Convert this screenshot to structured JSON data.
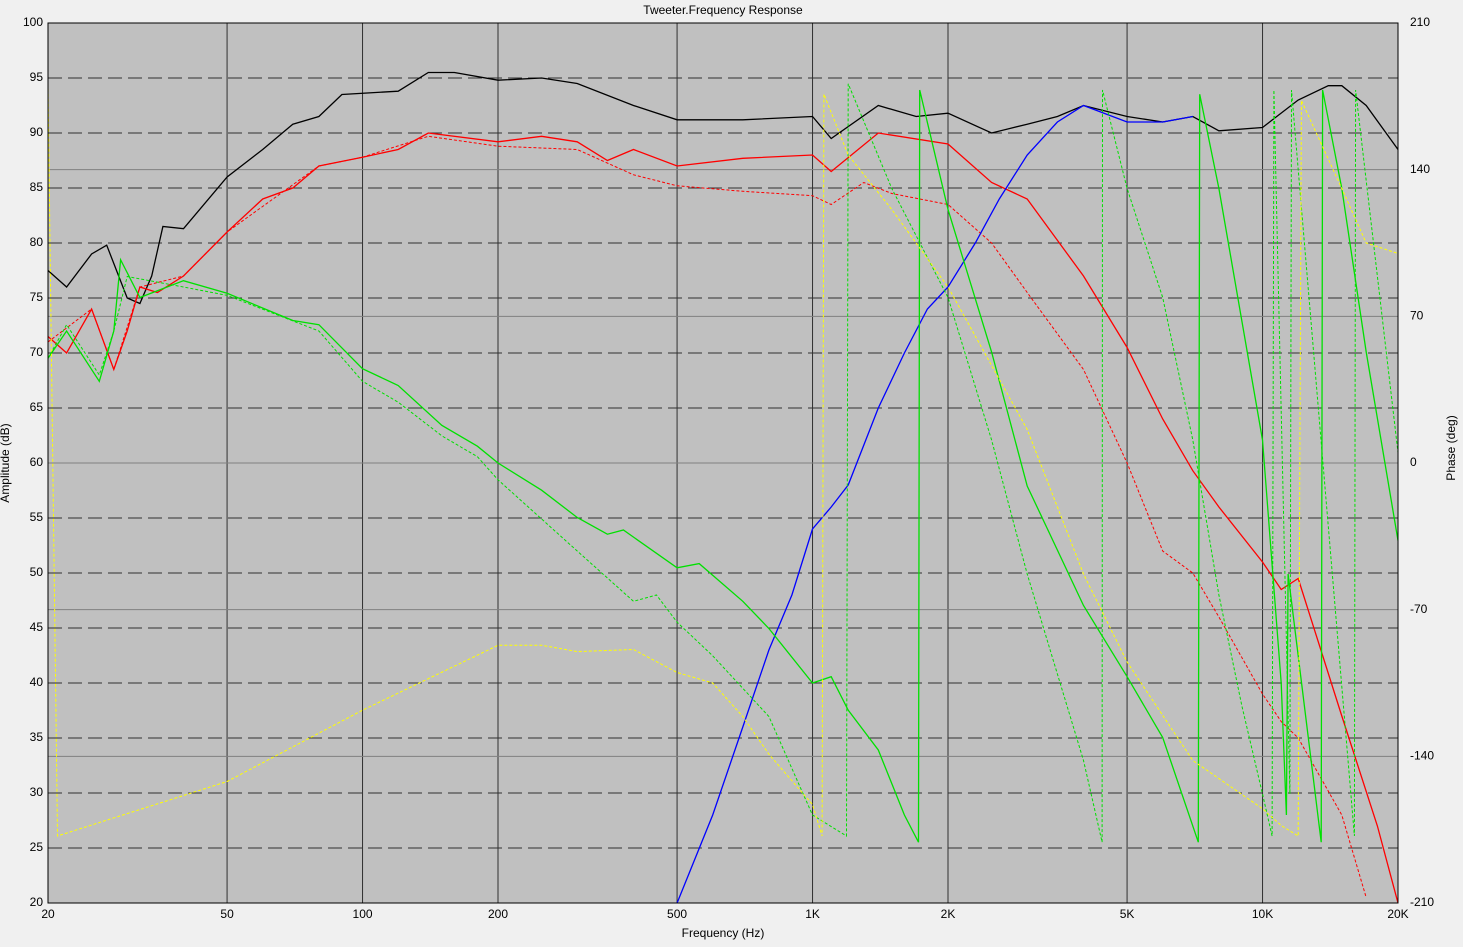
{
  "chart_data": {
    "type": "line",
    "title": "Tweeter.Frequency Response",
    "xlabel": "Frequency (Hz)",
    "ylabel": "Amplitude (dB)",
    "y2label": "Phase (deg)",
    "xscale": "log",
    "xlim": [
      20,
      20000
    ],
    "xticks": [
      20,
      50,
      100,
      200,
      500,
      {
        "value": 1000,
        "label": "1K"
      },
      {
        "value": 2000,
        "label": "2K"
      },
      {
        "value": 5000,
        "label": "5K"
      },
      {
        "value": 10000,
        "label": "10K"
      },
      {
        "value": 20000,
        "label": "20K"
      }
    ],
    "ylim": [
      20,
      100
    ],
    "yticks": [
      20,
      25,
      30,
      35,
      40,
      45,
      50,
      55,
      60,
      65,
      70,
      75,
      80,
      85,
      90,
      95,
      100
    ],
    "y2lim": [
      -210,
      210
    ],
    "y2ticks": [
      -210,
      -140,
      -70,
      0,
      70,
      140,
      210
    ],
    "grid": true,
    "series": [
      {
        "color": "#000000",
        "style": "solid",
        "x": [
          20,
          22,
          25,
          27,
          30,
          32,
          34,
          36,
          40,
          50,
          60,
          70,
          80,
          90,
          120,
          140,
          160,
          200,
          250,
          300,
          400,
          500,
          700,
          1000,
          1100,
          1400,
          1700,
          2000,
          2500,
          3000,
          3500,
          4000,
          5000,
          6000,
          7000,
          8000,
          10000,
          12000,
          14000,
          15000,
          17000,
          20000
        ],
        "values": [
          77.5,
          76,
          79,
          79.8,
          75,
          74.5,
          77,
          81.5,
          81.3,
          86,
          88.5,
          90.8,
          91.5,
          93.5,
          93.8,
          95.5,
          95.5,
          94.8,
          95,
          94.5,
          92.5,
          91.2,
          91.2,
          91.5,
          89.5,
          92.5,
          91.5,
          91.8,
          90,
          90.8,
          91.5,
          92.5,
          91.5,
          91,
          91.5,
          90.2,
          90.5,
          93,
          94.3,
          94.3,
          92.5,
          88.5
        ]
      },
      {
        "color": "#ff0000",
        "style": "solid",
        "x": [
          20,
          22,
          25,
          28,
          30,
          32,
          35,
          40,
          50,
          60,
          70,
          80,
          100,
          120,
          140,
          200,
          250,
          300,
          350,
          400,
          500,
          700,
          1000,
          1100,
          1400,
          2000,
          2500,
          3000,
          4000,
          5000,
          6000,
          7000,
          8000,
          10000,
          11000,
          12000,
          15000,
          18000,
          20000
        ],
        "values": [
          71.5,
          70,
          74,
          68.5,
          72,
          76,
          75.5,
          77,
          81,
          84,
          85,
          87,
          87.8,
          88.5,
          90,
          89.2,
          89.7,
          89.2,
          87.5,
          88.5,
          87,
          87.7,
          88,
          86.5,
          90,
          89,
          85.5,
          84,
          77,
          70.5,
          64,
          59.3,
          56,
          51,
          48.5,
          49.5,
          37,
          27,
          20
        ]
      },
      {
        "color": "#ff0000",
        "style": "dashed",
        "x": [
          20,
          25,
          28,
          32,
          40,
          50,
          80,
          100,
          140,
          200,
          300,
          400,
          500,
          700,
          1000,
          1100,
          1300,
          1500,
          2000,
          2500,
          3000,
          4000,
          5000,
          6000,
          7000,
          8000,
          10000,
          11000,
          12000,
          15000,
          17000
        ],
        "values": [
          71,
          74,
          68.5,
          76,
          77,
          81,
          87,
          87.8,
          89.7,
          88.8,
          88.5,
          86.2,
          85.2,
          84.7,
          84.3,
          83.5,
          85.5,
          84.5,
          83.5,
          80,
          75.5,
          68.5,
          60,
          52,
          50,
          46,
          39,
          36.5,
          35,
          28,
          20.5
        ]
      },
      {
        "color": "#0000ff",
        "style": "solid",
        "x": [
          500,
          600,
          700,
          800,
          900,
          1000,
          1100,
          1200,
          1400,
          1600,
          1800,
          2000,
          2300,
          2600,
          3000,
          3500,
          4000,
          5000,
          6000,
          7000
        ],
        "values": [
          20,
          28,
          36,
          43,
          48,
          54,
          56,
          58,
          65,
          70,
          74,
          76,
          80,
          84,
          88,
          91,
          92.5,
          91,
          91,
          91.5
        ]
      },
      {
        "color": "#00e000",
        "style": "solid",
        "axis": "y2",
        "x": [
          20,
          22,
          26,
          28,
          29,
          32,
          40,
          50,
          70,
          80,
          100,
          120,
          150,
          180,
          200,
          250,
          300,
          350,
          380,
          500,
          560,
          700,
          800,
          1000,
          1100,
          1200,
          1400,
          1600,
          1720,
          1730,
          2000,
          2500,
          3000,
          4000,
          5000,
          6000,
          7200,
          7250,
          8000,
          10000,
          11000,
          11300,
          11400,
          13500,
          13600,
          15000,
          17000,
          20000
        ],
        "values": [
          50,
          63,
          39,
          63,
          97,
          79,
          87,
          81,
          68,
          66,
          45,
          37,
          18,
          8,
          0,
          -13,
          -26,
          -34,
          -32,
          -50,
          -48,
          -66,
          -79,
          -105,
          -102,
          -118,
          -137,
          -168,
          -181,
          178,
          121,
          53,
          -11,
          -68,
          -102,
          -131,
          -181,
          176,
          131,
          11,
          -105,
          -168,
          -53,
          -181,
          178,
          131,
          53,
          -37
        ]
      },
      {
        "color": "#00e000",
        "style": "dashed",
        "axis": "y2",
        "x": [
          20,
          22,
          26,
          28,
          30,
          40,
          50,
          80,
          100,
          120,
          150,
          180,
          200,
          300,
          400,
          450,
          500,
          600,
          800,
          1000,
          1190,
          1200,
          1500,
          2000,
          2500,
          3000,
          4000,
          4400,
          4410,
          5000,
          6000,
          7000,
          8000,
          9000,
          10000,
          10500,
          10600,
          11500,
          11600,
          16000,
          16100,
          20000
        ],
        "values": [
          50,
          66,
          42,
          63,
          89,
          84,
          80,
          63,
          39,
          29,
          13,
          3,
          -8,
          -42,
          -66,
          -63,
          -76,
          -92,
          -121,
          -168,
          -178,
          181,
          131,
          79,
          11,
          -53,
          -142,
          -181,
          178,
          131,
          79,
          11,
          -63,
          -116,
          -158,
          -178,
          178,
          -158,
          178,
          -178,
          178,
          5
        ]
      },
      {
        "color": "#ffff00",
        "style": "dashed",
        "axis": "y2",
        "x": [
          20,
          21,
          50,
          100,
          200,
          250,
          300,
          400,
          500,
          600,
          700,
          800,
          1000,
          1050,
          1060,
          1200,
          1500,
          2000,
          3000,
          4000,
          5000,
          7000,
          10000,
          11000,
          12000,
          12200,
          15000,
          17000,
          20000
        ],
        "values": [
          181,
          -178,
          -152,
          -118,
          -87,
          -87,
          -90,
          -89,
          -100,
          -105,
          -121,
          -139,
          -163,
          -178,
          176,
          147,
          121,
          84,
          16,
          -53,
          -95,
          -142,
          -165,
          -173,
          -178,
          173,
          131,
          105,
          100
        ]
      }
    ]
  }
}
